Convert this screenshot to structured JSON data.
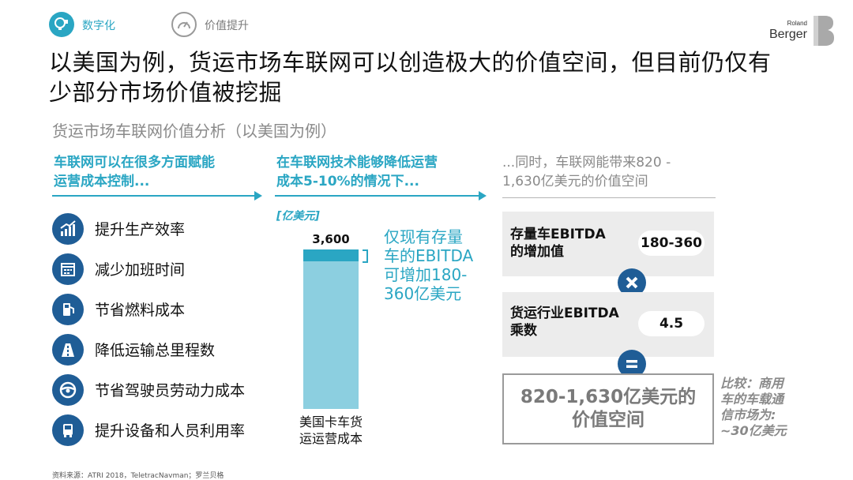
{
  "tabs": [
    {
      "label": "数字化",
      "icon": "bulb-icon",
      "active": true
    },
    {
      "label": "价值提升",
      "icon": "gauge-icon",
      "active": false
    }
  ],
  "logo": {
    "line1": "Roland",
    "line2": "Berger"
  },
  "title": {
    "line1": "以美国为例，货运市场车联网可以创造极大的价值空间，但目前仍仅有",
    "line2": "少部分市场价值被挖掘"
  },
  "subtitle": "货运市场车联网价值分析（以美国为例）",
  "columns": {
    "left": {
      "line1": "车联网可以在很多方面赋能",
      "line2": "运营成本控制..."
    },
    "middle": {
      "line1": "在车联网技术能够降低运营",
      "line2": "成本5-10%的情况下..."
    },
    "right": {
      "line1": "...同时，车联网能带来820 -",
      "line2": "1,630亿美元的价值空间"
    }
  },
  "levers": [
    {
      "label": "提升生产效率",
      "icon": "growth-chart-icon"
    },
    {
      "label": "减少加班时间",
      "icon": "calendar-icon"
    },
    {
      "label": "节省燃料成本",
      "icon": "fuel-pump-icon"
    },
    {
      "label": "降低运输总里程数",
      "icon": "road-icon"
    },
    {
      "label": "节省驾驶员劳动力成本",
      "icon": "steering-wheel-icon"
    },
    {
      "label": "提升设备和人员利用率",
      "icon": "truck-icon"
    }
  ],
  "bar": {
    "unit": "[亿美元]",
    "total": "3,600",
    "label_line1": "美国卡车货",
    "label_line2": "运运营成本",
    "highlight_share": 0.075,
    "colors": {
      "main": "#8ccfe0",
      "highlight": "#2aa6c3"
    }
  },
  "middle_note": {
    "line1": "仅现有存量",
    "line2": "车的EBITDA",
    "line3": "可增加180-",
    "line4": "360亿美元"
  },
  "right_boxes": [
    {
      "label_line1": "存量车EBITDA",
      "label_line2": "的增加值",
      "value": "180-360"
    },
    {
      "label_line1": "货运行业EBITDA",
      "label_line2": "乘数",
      "value": "4.5"
    }
  ],
  "result": {
    "line1": "820-1,630亿美元的",
    "line2": "价值空间"
  },
  "compare": {
    "line1": "比较：商用",
    "line2": "车的车载通",
    "line3": "信市场为:",
    "line4": "~30亿美元"
  },
  "source": "资料来源：ATRI 2018，TeletracNavman；罗兰贝格",
  "colors": {
    "teal": "#2aa6c3",
    "navy": "#1f5d96",
    "grey": "#8a8a8a",
    "box": "#ececec"
  }
}
